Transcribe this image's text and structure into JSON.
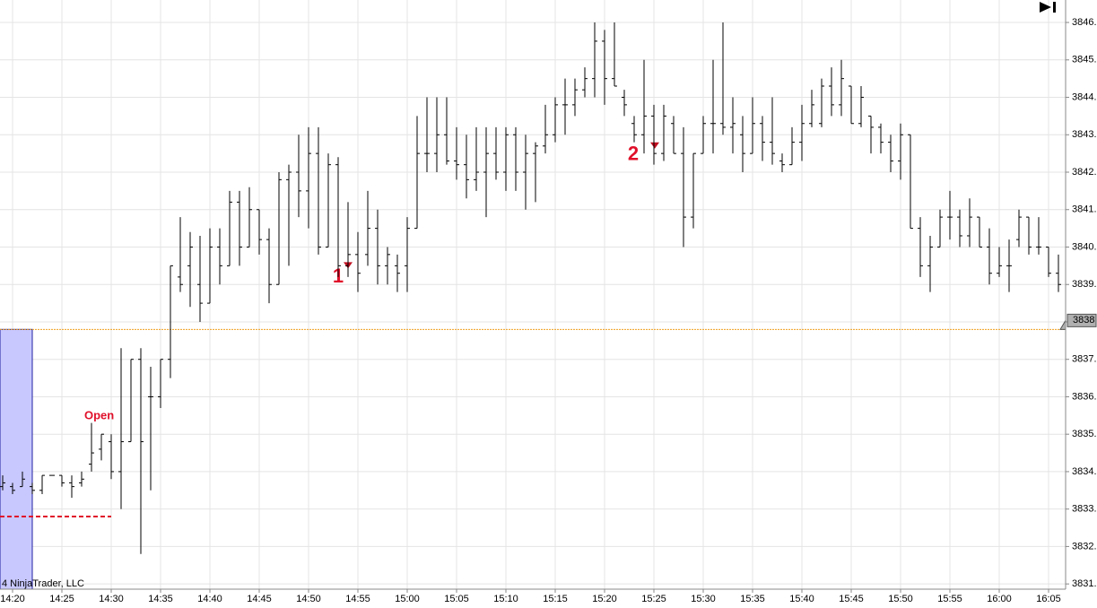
{
  "chart_data": {
    "type": "ohlc",
    "categories": [
      null,
      "14:20",
      null,
      null,
      null,
      null,
      "14:25",
      null,
      null,
      null,
      null,
      "14:30",
      null,
      null,
      null,
      null,
      "14:35",
      null,
      null,
      null,
      null,
      "14:40",
      null,
      null,
      null,
      null,
      "14:45",
      null,
      null,
      null,
      null,
      "14:50",
      null,
      null,
      null,
      null,
      "14:55",
      null,
      null,
      null,
      null,
      "15:00",
      null,
      null,
      null,
      null,
      "15:05",
      null,
      null,
      null,
      null,
      "15:10",
      null,
      null,
      null,
      null,
      "15:15",
      null,
      null,
      null,
      null,
      "15:20",
      null,
      null,
      null,
      null,
      "15:25",
      null,
      null,
      null,
      null,
      "15:30",
      null,
      null,
      null,
      null,
      "15:35",
      null,
      null,
      null,
      null,
      "15:40",
      null,
      null,
      null,
      null,
      "15:45",
      null,
      null,
      null,
      null,
      "15:50",
      null,
      null,
      null,
      null,
      "15:55",
      null,
      null,
      null,
      null,
      "16:00",
      null,
      null,
      null,
      null,
      "16:05",
      null
    ],
    "open": [
      3833.6,
      3833.6,
      3833.6,
      3833.6,
      3833.5,
      3833.9,
      3833.9,
      3833.7,
      3833.7,
      3834.2,
      3834.6,
      3834.8,
      3834.0,
      3834.8,
      3837.0,
      3836.0,
      3836.0,
      3837.0,
      3839.2,
      3839.5,
      3839.0,
      3838.5,
      3840.0,
      3839.5,
      3841.2,
      3840.0,
      3841.0,
      3840.2,
      3839.0,
      3841.8,
      3842.0,
      3841.5,
      3842.5,
      3840.0,
      3842.2,
      3839.5,
      3839.8,
      3839.8,
      3840.5,
      3839.5,
      3839.5,
      3839.5,
      3840.5,
      3842.5,
      3842.5,
      3843.0,
      3842.3,
      3842.2,
      3841.8,
      3842.0,
      3842.5,
      3842.0,
      3843.0,
      3842.0,
      3842.5,
      3842.7,
      3843.0,
      3843.8,
      3843.8,
      3844.2,
      3844.5,
      3845.5,
      3844.5,
      3844.0,
      3843.3,
      3843.0,
      3843.5,
      3842.5,
      3843.3,
      3842.5,
      3840.8,
      3842.5,
      3843.3,
      3843.3,
      3843.2,
      3843.0,
      3842.5,
      3843.3,
      3842.8,
      3842.3,
      3842.2,
      3842.8,
      3843.3,
      3843.3,
      3844.3,
      3843.8,
      3844.3,
      3843.3,
      3843.5,
      3843.2,
      3842.8,
      3842.3,
      3843.0,
      3840.5,
      3839.5,
      3840.0,
      3840.8,
      3840.8,
      3840.3,
      3840.8,
      3840.0,
      3839.3,
      3839.5,
      3840.2,
      3840.8,
      3840.0,
      3840.0,
      3839.3
    ],
    "high": [
      3833.9,
      3833.7,
      3834.0,
      3833.7,
      3833.9,
      3833.9,
      3833.9,
      3833.9,
      3834.0,
      3835.3,
      3835.0,
      3835.0,
      3837.3,
      3837.0,
      3837.3,
      3836.8,
      3837.0,
      3839.5,
      3840.8,
      3840.4,
      3840.3,
      3840.5,
      3840.5,
      3841.5,
      3841.5,
      3841.6,
      3841.0,
      3840.5,
      3842.0,
      3842.2,
      3843.0,
      3843.2,
      3843.2,
      3842.5,
      3842.4,
      3841.2,
      3840.4,
      3841.5,
      3841.0,
      3840.0,
      3839.8,
      3840.8,
      3843.5,
      3844.0,
      3844.0,
      3844.0,
      3843.2,
      3843.0,
      3843.2,
      3843.2,
      3843.2,
      3843.2,
      3843.2,
      3843.0,
      3842.8,
      3843.8,
      3844.0,
      3844.5,
      3844.5,
      3844.8,
      3846.0,
      3845.8,
      3846.0,
      3844.2,
      3843.5,
      3845.0,
      3843.8,
      3843.8,
      3843.5,
      3843.2,
      3842.5,
      3843.5,
      3845.0,
      3846.0,
      3844.0,
      3843.5,
      3844.0,
      3843.5,
      3844.0,
      3842.5,
      3843.2,
      3843.8,
      3844.2,
      3844.5,
      3844.8,
      3845.0,
      3844.3,
      3844.3,
      3843.5,
      3843.3,
      3843.0,
      3843.3,
      3843.0,
      3840.8,
      3840.3,
      3841.0,
      3841.5,
      3841.0,
      3841.3,
      3840.8,
      3840.5,
      3840.0,
      3840.2,
      3841.0,
      3840.8,
      3840.8,
      3840.0,
      3839.8
    ],
    "low": [
      3833.5,
      3833.4,
      3833.6,
      3833.4,
      3833.4,
      3833.9,
      3833.6,
      3833.3,
      3833.6,
      3834.0,
      3834.3,
      3833.8,
      3833.0,
      3834.8,
      3831.8,
      3833.5,
      3835.7,
      3836.5,
      3838.8,
      3838.4,
      3838.0,
      3838.5,
      3839.0,
      3839.5,
      3839.5,
      3840.0,
      3839.8,
      3838.5,
      3839.0,
      3839.5,
      3840.8,
      3840.5,
      3839.8,
      3840.0,
      3839.2,
      3839.2,
      3838.8,
      3839.5,
      3839.0,
      3839.0,
      3838.8,
      3838.8,
      3840.5,
      3842.0,
      3842.0,
      3842.2,
      3841.8,
      3841.3,
      3841.5,
      3840.8,
      3841.8,
      3841.5,
      3841.5,
      3841.0,
      3841.2,
      3842.5,
      3842.8,
      3843.0,
      3843.5,
      3844.0,
      3844.0,
      3843.8,
      3844.3,
      3843.5,
      3842.8,
      3842.5,
      3842.2,
      3842.3,
      3842.5,
      3840.0,
      3840.5,
      3842.5,
      3842.5,
      3843.0,
      3842.5,
      3842.0,
      3842.5,
      3842.3,
      3842.2,
      3842.0,
      3842.2,
      3842.3,
      3843.2,
      3843.2,
      3843.5,
      3843.5,
      3843.3,
      3843.2,
      3842.5,
      3842.5,
      3842.0,
      3841.8,
      3840.5,
      3839.2,
      3838.8,
      3840.0,
      3840.2,
      3840.0,
      3840.0,
      3840.0,
      3839.0,
      3839.2,
      3838.8,
      3840.0,
      3839.8,
      3839.8,
      3839.2,
      3838.8
    ],
    "close": [
      3833.7,
      3833.5,
      3833.8,
      3833.5,
      3833.9,
      3833.9,
      3833.7,
      3833.6,
      3833.8,
      3834.5,
      3835.0,
      3834.0,
      3834.8,
      3837.0,
      3834.8,
      3836.0,
      3837.0,
      3839.5,
      3839.0,
      3840.0,
      3838.5,
      3840.0,
      3839.5,
      3841.2,
      3840.0,
      3841.0,
      3840.2,
      3839.0,
      3841.8,
      3842.0,
      3841.5,
      3842.5,
      3840.0,
      3842.2,
      3839.5,
      3839.8,
      3839.3,
      3840.5,
      3839.5,
      3839.8,
      3839.3,
      3840.5,
      3842.5,
      3842.5,
      3843.0,
      3842.3,
      3842.2,
      3841.8,
      3842.0,
      3842.5,
      3842.0,
      3843.0,
      3842.0,
      3842.5,
      3842.7,
      3843.0,
      3843.8,
      3843.8,
      3844.2,
      3844.5,
      3845.5,
      3844.5,
      3844.3,
      3843.8,
      3843.0,
      3843.5,
      3842.5,
      3843.5,
      3842.5,
      3840.8,
      3842.5,
      3843.3,
      3843.3,
      3843.2,
      3843.3,
      3842.5,
      3843.3,
      3842.8,
      3842.5,
      3842.2,
      3842.8,
      3843.3,
      3843.8,
      3844.3,
      3843.8,
      3844.5,
      3843.3,
      3844.0,
      3843.2,
      3842.8,
      3842.3,
      3843.0,
      3840.5,
      3839.5,
      3840.0,
      3840.8,
      3840.8,
      3840.3,
      3840.8,
      3840.0,
      3839.3,
      3839.5,
      3839.5,
      3840.8,
      3840.0,
      3840.0,
      3839.3,
      3839.0
    ],
    "color": "#000000",
    "ylim": [
      3830.86,
      3846.6
    ],
    "yticks": [
      {
        "value": 3831,
        "label": "3831."
      },
      {
        "value": 3832,
        "label": "3832."
      },
      {
        "value": 3833,
        "label": "3833."
      },
      {
        "value": 3834,
        "label": "3834."
      },
      {
        "value": 3835,
        "label": "3835."
      },
      {
        "value": 3836,
        "label": "3836."
      },
      {
        "value": 3837,
        "label": "3837."
      },
      {
        "value": 3838,
        "label": "3838."
      },
      {
        "value": 3839,
        "label": "3839."
      },
      {
        "value": 3840,
        "label": "3840."
      },
      {
        "value": 3841,
        "label": "3841."
      },
      {
        "value": 3842,
        "label": "3842."
      },
      {
        "value": 3843,
        "label": "3843."
      },
      {
        "value": 3844,
        "label": "3844."
      },
      {
        "value": 3845,
        "label": "3845."
      },
      {
        "value": 3846,
        "label": "3846."
      }
    ],
    "grid": true,
    "last_price": {
      "value": 3837.8,
      "label": "3838",
      "color": "#f0a020"
    },
    "reference_line": {
      "value": 3832.8,
      "color": "#e0102a"
    },
    "range_box": {
      "top": 3837.8,
      "bottom": 3830.86,
      "color": "#c8c8ff"
    },
    "open_label": "Open",
    "markers": [
      {
        "label": "1",
        "price": 3839.5
      },
      {
        "label": "2",
        "price": 3842.7
      }
    ],
    "copyright": "4 NinjaTrader, LLC"
  }
}
